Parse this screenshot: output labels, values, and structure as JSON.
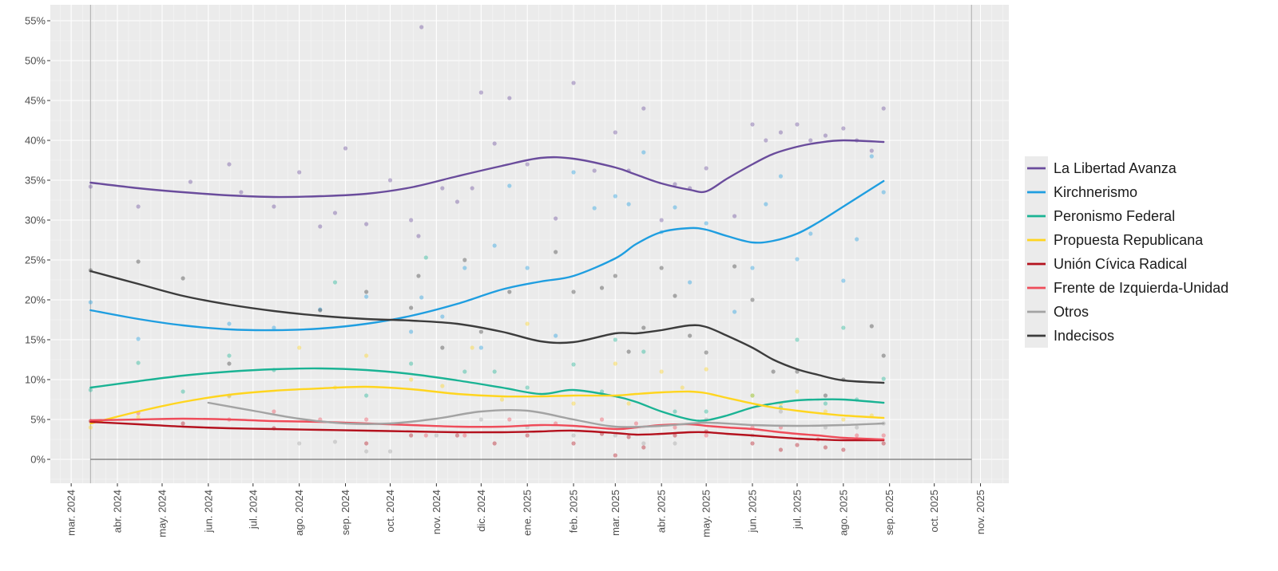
{
  "chart_data": {
    "type": "line",
    "title": "",
    "xlabel": "",
    "ylabel": "",
    "ylim": [
      -0.03,
      0.57
    ],
    "y_ticks": [
      0,
      0.05,
      0.1,
      0.15,
      0.2,
      0.25,
      0.3,
      0.35,
      0.4,
      0.45,
      0.5,
      0.55
    ],
    "y_tick_labels": [
      "0%",
      "5%",
      "10%",
      "15%",
      "20%",
      "25%",
      "30%",
      "35%",
      "40%",
      "45%",
      "50%",
      "55%"
    ],
    "x_range": [
      "2024-02-16",
      "2025-11-20"
    ],
    "x_ticks": [
      "2024-03-01",
      "2024-04-01",
      "2024-05-01",
      "2024-06-01",
      "2024-07-01",
      "2024-08-01",
      "2024-09-01",
      "2024-10-01",
      "2024-11-01",
      "2024-12-01",
      "2025-01-01",
      "2025-02-01",
      "2025-03-01",
      "2025-04-01",
      "2025-05-01",
      "2025-06-01",
      "2025-07-01",
      "2025-08-01",
      "2025-09-01",
      "2025-10-01",
      "2025-11-01"
    ],
    "x_tick_labels": [
      "mar. 2024",
      "abr. 2024",
      "may. 2024",
      "jun. 2024",
      "jul. 2024",
      "ago. 2024",
      "sep. 2024",
      "oct. 2024",
      "nov. 2024",
      "dic. 2024",
      "ene. 2025",
      "feb. 2025",
      "mar. 2025",
      "abr. 2025",
      "may. 2025",
      "jun. 2025",
      "jul. 2025",
      "ago. 2025",
      "sep. 2025",
      "oct. 2025",
      "nov. 2025"
    ],
    "reference_lines": {
      "vertical": [
        "2024-03-14",
        "2025-10-26"
      ],
      "horizontal_span": [
        "2024-03-14",
        "2025-10-26"
      ],
      "horizontal_y": 0
    },
    "grid": true,
    "legend_position": "right",
    "series": [
      {
        "name": "La Libertad Avanza",
        "color": "#6a4c9c",
        "x": [
          "2024-03-14",
          "2024-04-15",
          "2024-05-15",
          "2024-06-15",
          "2024-07-15",
          "2024-08-15",
          "2024-09-15",
          "2024-10-15",
          "2024-11-15",
          "2024-12-15",
          "2025-01-10",
          "2025-02-01",
          "2025-03-01",
          "2025-03-15",
          "2025-04-01",
          "2025-04-20",
          "2025-05-01",
          "2025-05-15",
          "2025-06-01",
          "2025-06-15",
          "2025-07-01",
          "2025-07-15",
          "2025-08-01",
          "2025-08-28"
        ],
        "y": [
          0.347,
          0.34,
          0.335,
          0.331,
          0.329,
          0.33,
          0.333,
          0.341,
          0.355,
          0.368,
          0.378,
          0.377,
          0.366,
          0.357,
          0.346,
          0.338,
          0.336,
          0.352,
          0.37,
          0.383,
          0.392,
          0.397,
          0.4,
          0.398
        ]
      },
      {
        "name": "Kirchnerismo",
        "color": "#1f9ee0",
        "x": [
          "2024-03-14",
          "2024-04-15",
          "2024-05-15",
          "2024-06-15",
          "2024-07-15",
          "2024-08-15",
          "2024-09-15",
          "2024-10-15",
          "2024-11-15",
          "2024-12-15",
          "2025-01-10",
          "2025-02-01",
          "2025-03-01",
          "2025-03-15",
          "2025-04-01",
          "2025-04-20",
          "2025-05-01",
          "2025-05-15",
          "2025-06-01",
          "2025-06-15",
          "2025-07-01",
          "2025-07-15",
          "2025-08-01",
          "2025-08-28"
        ],
        "y": [
          0.187,
          0.176,
          0.168,
          0.163,
          0.162,
          0.164,
          0.17,
          0.18,
          0.195,
          0.213,
          0.223,
          0.23,
          0.252,
          0.27,
          0.285,
          0.29,
          0.288,
          0.28,
          0.272,
          0.274,
          0.283,
          0.297,
          0.317,
          0.349
        ]
      },
      {
        "name": "Peronismo Federal",
        "color": "#1ab394",
        "x": [
          "2024-03-14",
          "2024-04-15",
          "2024-05-15",
          "2024-06-15",
          "2024-07-15",
          "2024-08-15",
          "2024-09-15",
          "2024-10-15",
          "2024-11-15",
          "2024-12-15",
          "2025-01-10",
          "2025-02-01",
          "2025-03-01",
          "2025-03-15",
          "2025-04-01",
          "2025-04-20",
          "2025-05-01",
          "2025-05-15",
          "2025-06-01",
          "2025-06-15",
          "2025-07-01",
          "2025-07-15",
          "2025-08-01",
          "2025-08-28"
        ],
        "y": [
          0.09,
          0.098,
          0.105,
          0.11,
          0.113,
          0.114,
          0.112,
          0.107,
          0.099,
          0.09,
          0.082,
          0.087,
          0.079,
          0.072,
          0.06,
          0.05,
          0.049,
          0.055,
          0.065,
          0.07,
          0.074,
          0.075,
          0.075,
          0.071
        ]
      },
      {
        "name": "Propuesta Republicana",
        "color": "#ffd51f",
        "x": [
          "2024-03-14",
          "2024-04-15",
          "2024-05-15",
          "2024-06-15",
          "2024-07-15",
          "2024-08-15",
          "2024-09-15",
          "2024-10-15",
          "2024-11-15",
          "2024-12-15",
          "2025-01-10",
          "2025-02-01",
          "2025-03-01",
          "2025-03-15",
          "2025-04-01",
          "2025-04-20",
          "2025-05-01",
          "2025-05-15",
          "2025-06-01",
          "2025-06-15",
          "2025-07-01",
          "2025-07-15",
          "2025-08-01",
          "2025-08-28"
        ],
        "y": [
          0.045,
          0.06,
          0.072,
          0.081,
          0.086,
          0.089,
          0.091,
          0.088,
          0.082,
          0.079,
          0.079,
          0.08,
          0.08,
          0.082,
          0.084,
          0.085,
          0.083,
          0.077,
          0.07,
          0.065,
          0.061,
          0.058,
          0.055,
          0.052
        ]
      },
      {
        "name": "Unión Cívica Radical",
        "color": "#b4121e",
        "x": [
          "2024-03-14",
          "2024-04-15",
          "2024-05-15",
          "2024-06-15",
          "2024-07-15",
          "2024-08-15",
          "2024-09-15",
          "2024-10-15",
          "2024-11-15",
          "2024-12-15",
          "2025-01-10",
          "2025-02-01",
          "2025-03-01",
          "2025-03-15",
          "2025-04-01",
          "2025-04-20",
          "2025-05-01",
          "2025-05-15",
          "2025-06-01",
          "2025-06-15",
          "2025-07-01",
          "2025-07-15",
          "2025-08-01",
          "2025-08-28"
        ],
        "y": [
          0.047,
          0.044,
          0.041,
          0.039,
          0.038,
          0.037,
          0.036,
          0.035,
          0.034,
          0.034,
          0.035,
          0.036,
          0.033,
          0.031,
          0.032,
          0.034,
          0.034,
          0.032,
          0.03,
          0.028,
          0.026,
          0.025,
          0.024,
          0.024
        ]
      },
      {
        "name": "Frente de Izquierda-Unidad",
        "color": "#ef4c5a",
        "x": [
          "2024-03-14",
          "2024-04-15",
          "2024-05-15",
          "2024-06-15",
          "2024-07-15",
          "2024-08-15",
          "2024-09-15",
          "2024-10-15",
          "2024-11-15",
          "2024-12-15",
          "2025-01-10",
          "2025-02-01",
          "2025-03-01",
          "2025-03-15",
          "2025-04-01",
          "2025-04-20",
          "2025-05-01",
          "2025-05-15",
          "2025-06-01",
          "2025-06-15",
          "2025-07-01",
          "2025-07-15",
          "2025-08-01",
          "2025-08-28"
        ],
        "y": [
          0.049,
          0.05,
          0.051,
          0.05,
          0.048,
          0.047,
          0.045,
          0.043,
          0.041,
          0.041,
          0.043,
          0.042,
          0.038,
          0.04,
          0.043,
          0.044,
          0.042,
          0.04,
          0.038,
          0.035,
          0.032,
          0.03,
          0.027,
          0.025
        ]
      },
      {
        "name": "Otros",
        "color": "#a3a3a3",
        "x": [
          "2024-06-01",
          "2024-07-01",
          "2024-08-01",
          "2024-09-01",
          "2024-10-01",
          "2024-11-01",
          "2024-12-01",
          "2025-01-01",
          "2025-02-01",
          "2025-03-01",
          "2025-04-01",
          "2025-05-01",
          "2025-06-01",
          "2025-07-01",
          "2025-08-01",
          "2025-08-28"
        ],
        "y": [
          0.071,
          0.061,
          0.051,
          0.045,
          0.045,
          0.051,
          0.06,
          0.061,
          0.05,
          0.041,
          0.042,
          0.046,
          0.043,
          0.042,
          0.043,
          0.045
        ]
      },
      {
        "name": "Indecisos",
        "color": "#3c3c3c",
        "x": [
          "2024-03-14",
          "2024-04-15",
          "2024-05-15",
          "2024-06-15",
          "2024-07-15",
          "2024-08-15",
          "2024-09-15",
          "2024-10-15",
          "2024-11-15",
          "2024-12-15",
          "2025-01-10",
          "2025-02-01",
          "2025-03-01",
          "2025-03-15",
          "2025-04-01",
          "2025-04-20",
          "2025-05-01",
          "2025-05-15",
          "2025-06-01",
          "2025-06-15",
          "2025-07-01",
          "2025-07-15",
          "2025-08-01",
          "2025-08-28"
        ],
        "y": [
          0.236,
          0.22,
          0.205,
          0.194,
          0.186,
          0.18,
          0.176,
          0.174,
          0.17,
          0.16,
          0.148,
          0.147,
          0.158,
          0.158,
          0.162,
          0.168,
          0.166,
          0.155,
          0.14,
          0.125,
          0.113,
          0.106,
          0.099,
          0.096
        ]
      }
    ],
    "poll_points": [
      {
        "series": "La Libertad Avanza",
        "x": [
          "2024-03-14",
          "2024-04-15",
          "2024-05-20",
          "2024-06-15",
          "2024-06-23",
          "2024-07-15",
          "2024-08-01",
          "2024-08-15",
          "2024-08-25",
          "2024-09-01",
          "2024-09-15",
          "2024-10-01",
          "2024-10-15",
          "2024-10-20",
          "2024-10-22",
          "2024-11-05",
          "2024-11-15",
          "2024-11-25",
          "2024-12-01",
          "2024-12-10",
          "2024-12-20",
          "2025-01-01",
          "2025-01-20",
          "2025-02-01",
          "2025-02-15",
          "2025-03-01",
          "2025-03-10",
          "2025-03-20",
          "2025-04-01",
          "2025-04-10",
          "2025-04-20",
          "2025-05-01",
          "2025-05-20",
          "2025-06-01",
          "2025-06-10",
          "2025-06-20",
          "2025-07-01",
          "2025-07-10",
          "2025-07-20",
          "2025-08-01",
          "2025-08-10",
          "2025-08-20",
          "2025-08-28"
        ],
        "y": [
          0.342,
          0.317,
          0.348,
          0.37,
          0.335,
          0.317,
          0.36,
          0.292,
          0.309,
          0.39,
          0.295,
          0.35,
          0.3,
          0.28,
          0.542,
          0.34,
          0.323,
          0.34,
          0.46,
          0.396,
          0.453,
          0.37,
          0.302,
          0.472,
          0.362,
          0.41,
          0.362,
          0.44,
          0.3,
          0.345,
          0.34,
          0.365,
          0.305,
          0.42,
          0.4,
          0.41,
          0.42,
          0.4,
          0.406,
          0.415,
          0.4,
          0.387,
          0.44
        ]
      },
      {
        "series": "Kirchnerismo",
        "x": [
          "2024-03-14",
          "2024-04-15",
          "2024-06-15",
          "2024-07-15",
          "2024-08-15",
          "2024-09-15",
          "2024-10-15",
          "2024-10-22",
          "2024-11-05",
          "2024-11-20",
          "2024-12-01",
          "2024-12-10",
          "2024-12-20",
          "2025-01-01",
          "2025-01-20",
          "2025-02-01",
          "2025-02-15",
          "2025-03-01",
          "2025-03-10",
          "2025-03-20",
          "2025-04-01",
          "2025-04-10",
          "2025-04-20",
          "2025-05-01",
          "2025-05-20",
          "2025-06-01",
          "2025-06-10",
          "2025-06-20",
          "2025-07-01",
          "2025-07-10",
          "2025-08-01",
          "2025-08-10",
          "2025-08-20",
          "2025-08-28"
        ],
        "y": [
          0.197,
          0.151,
          0.17,
          0.165,
          0.188,
          0.204,
          0.16,
          0.203,
          0.179,
          0.24,
          0.14,
          0.268,
          0.343,
          0.24,
          0.155,
          0.36,
          0.315,
          0.33,
          0.32,
          0.385,
          0.285,
          0.316,
          0.222,
          0.296,
          0.185,
          0.24,
          0.32,
          0.355,
          0.251,
          0.283,
          0.224,
          0.276,
          0.38,
          0.335
        ]
      },
      {
        "series": "Peronismo Federal",
        "x": [
          "2024-03-14",
          "2024-04-15",
          "2024-05-15",
          "2024-06-15",
          "2024-07-15",
          "2024-08-25",
          "2024-09-15",
          "2024-10-15",
          "2024-10-25",
          "2024-11-20",
          "2024-12-10",
          "2025-01-01",
          "2025-02-01",
          "2025-02-20",
          "2025-03-01",
          "2025-03-20",
          "2025-04-10",
          "2025-05-01",
          "2025-06-01",
          "2025-06-20",
          "2025-07-01",
          "2025-07-20",
          "2025-08-01",
          "2025-08-10",
          "2025-08-28"
        ],
        "y": [
          0.087,
          0.121,
          0.085,
          0.13,
          0.112,
          0.222,
          0.08,
          0.12,
          0.253,
          0.11,
          0.11,
          0.09,
          0.119,
          0.085,
          0.15,
          0.135,
          0.06,
          0.06,
          0.08,
          0.065,
          0.15,
          0.07,
          0.165,
          0.075,
          0.101
        ]
      },
      {
        "series": "Propuesta Republicana",
        "x": [
          "2024-03-14",
          "2024-04-15",
          "2024-06-15",
          "2024-08-01",
          "2024-08-25",
          "2024-09-15",
          "2024-10-15",
          "2024-11-05",
          "2024-11-25",
          "2024-12-15",
          "2025-01-01",
          "2025-02-01",
          "2025-03-01",
          "2025-03-10",
          "2025-04-01",
          "2025-04-15",
          "2025-05-01",
          "2025-06-01",
          "2025-06-20",
          "2025-07-01",
          "2025-07-20",
          "2025-08-01",
          "2025-08-20"
        ],
        "y": [
          0.04,
          0.053,
          0.079,
          0.14,
          0.09,
          0.13,
          0.1,
          0.092,
          0.14,
          0.075,
          0.17,
          0.07,
          0.12,
          0.07,
          0.11,
          0.09,
          0.113,
          0.08,
          0.07,
          0.085,
          0.06,
          0.05,
          0.055
        ]
      },
      {
        "series": "Unión Cívica Radical",
        "x": [
          "2024-03-14",
          "2024-05-15",
          "2024-07-15",
          "2024-09-15",
          "2024-10-15",
          "2024-11-15",
          "2024-12-10",
          "2025-01-01",
          "2025-02-01",
          "2025-02-20",
          "2025-03-01",
          "2025-03-10",
          "2025-03-20",
          "2025-04-10",
          "2025-05-01",
          "2025-06-01",
          "2025-06-20",
          "2025-07-01",
          "2025-07-20",
          "2025-08-01",
          "2025-08-28"
        ],
        "y": [
          0.048,
          0.045,
          0.039,
          0.02,
          0.03,
          0.03,
          0.02,
          0.03,
          0.02,
          0.032,
          0.005,
          0.028,
          0.015,
          0.03,
          0.035,
          0.02,
          0.012,
          0.018,
          0.015,
          0.012,
          0.02
        ]
      },
      {
        "series": "Frente de Izquierda-Unidad",
        "x": [
          "2024-04-15",
          "2024-06-15",
          "2024-07-15",
          "2024-08-15",
          "2024-09-15",
          "2024-10-25",
          "2024-11-20",
          "2024-12-20",
          "2025-01-20",
          "2025-02-20",
          "2025-03-15",
          "2025-04-10",
          "2025-05-01",
          "2025-06-01",
          "2025-06-20",
          "2025-07-15",
          "2025-08-10",
          "2025-08-28"
        ],
        "y": [
          0.058,
          0.05,
          0.06,
          0.05,
          0.05,
          0.03,
          0.03,
          0.05,
          0.045,
          0.05,
          0.045,
          0.04,
          0.03,
          0.04,
          0.04,
          0.025,
          0.03,
          0.03
        ]
      },
      {
        "series": "Otros",
        "x": [
          "2024-06-15",
          "2024-08-01",
          "2024-08-25",
          "2024-09-15",
          "2024-10-01",
          "2024-11-01",
          "2024-12-01",
          "2025-01-01",
          "2025-02-01",
          "2025-03-01",
          "2025-03-20",
          "2025-04-10",
          "2025-05-01",
          "2025-06-01",
          "2025-06-20",
          "2025-07-20",
          "2025-08-10",
          "2025-08-28"
        ],
        "y": [
          0.08,
          0.02,
          0.022,
          0.01,
          0.01,
          0.03,
          0.05,
          0.04,
          0.03,
          0.03,
          0.02,
          0.02,
          0.05,
          0.03,
          0.06,
          0.04,
          0.04,
          0.045
        ]
      },
      {
        "series": "Indecisos",
        "x": [
          "2024-03-14",
          "2024-04-15",
          "2024-05-15",
          "2024-06-15",
          "2024-08-15",
          "2024-09-15",
          "2024-10-15",
          "2024-10-20",
          "2024-11-05",
          "2024-11-20",
          "2024-12-01",
          "2024-12-20",
          "2025-01-20",
          "2025-02-01",
          "2025-02-20",
          "2025-03-01",
          "2025-03-10",
          "2025-03-20",
          "2025-04-01",
          "2025-04-10",
          "2025-04-20",
          "2025-05-01",
          "2025-05-20",
          "2025-06-01",
          "2025-06-15",
          "2025-07-01",
          "2025-07-20",
          "2025-08-01",
          "2025-08-20",
          "2025-08-28"
        ],
        "y": [
          0.237,
          0.248,
          0.227,
          0.12,
          0.187,
          0.21,
          0.19,
          0.23,
          0.14,
          0.25,
          0.16,
          0.21,
          0.26,
          0.21,
          0.215,
          0.23,
          0.135,
          0.165,
          0.24,
          0.205,
          0.155,
          0.134,
          0.242,
          0.2,
          0.11,
          0.11,
          0.08,
          0.1,
          0.167,
          0.13
        ]
      }
    ]
  }
}
